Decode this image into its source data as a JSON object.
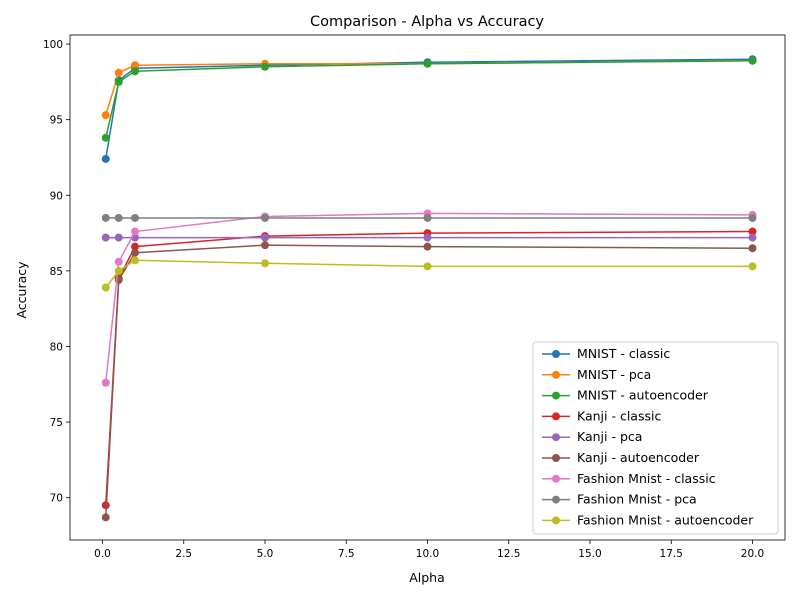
{
  "chart_data": {
    "type": "line",
    "title": "Comparison - Alpha vs Accuracy",
    "xlabel": "Alpha",
    "ylabel": "Accuracy",
    "xlim": [
      -1.0,
      21.0
    ],
    "ylim": [
      67.2,
      100.6
    ],
    "xticks": [
      0.0,
      2.5,
      5.0,
      7.5,
      10.0,
      12.5,
      15.0,
      17.5,
      20.0
    ],
    "xtick_labels": [
      "0.0",
      "2.5",
      "5.0",
      "7.5",
      "10.0",
      "12.5",
      "15.0",
      "17.5",
      "20.0"
    ],
    "yticks": [
      70,
      75,
      80,
      85,
      90,
      95,
      100
    ],
    "ytick_labels": [
      "70",
      "75",
      "80",
      "85",
      "90",
      "95",
      "100"
    ],
    "grid": false,
    "legend_position": "bottom-right",
    "x": [
      0.1,
      0.5,
      1.0,
      5.0,
      10.0,
      20.0
    ],
    "series": [
      {
        "name": "MNIST - classic",
        "color": "#1f77b4",
        "values": [
          92.4,
          97.6,
          98.4,
          98.6,
          98.8,
          99.0
        ]
      },
      {
        "name": "MNIST - pca",
        "color": "#ff7f0e",
        "values": [
          95.3,
          98.1,
          98.6,
          98.7,
          98.7,
          98.9
        ]
      },
      {
        "name": "MNIST - autoencoder",
        "color": "#2ca02c",
        "values": [
          93.8,
          97.5,
          98.2,
          98.5,
          98.7,
          98.9
        ]
      },
      {
        "name": "Kanji - classic",
        "color": "#d62728",
        "values": [
          69.5,
          84.5,
          86.6,
          87.3,
          87.5,
          87.6
        ]
      },
      {
        "name": "Kanji - pca",
        "color": "#9467bd",
        "values": [
          87.2,
          87.2,
          87.2,
          87.2,
          87.2,
          87.2
        ]
      },
      {
        "name": "Kanji - autoencoder",
        "color": "#8c564b",
        "values": [
          68.7,
          84.4,
          86.2,
          86.7,
          86.6,
          86.5
        ]
      },
      {
        "name": "Fashion Mnist - classic",
        "color": "#e377c2",
        "values": [
          77.6,
          85.6,
          87.6,
          88.6,
          88.8,
          88.7
        ]
      },
      {
        "name": "Fashion Mnist - pca",
        "color": "#7f7f7f",
        "values": [
          88.5,
          88.5,
          88.5,
          88.5,
          88.5,
          88.5
        ]
      },
      {
        "name": "Fashion Mnist - autoencoder",
        "color": "#bcbd22",
        "values": [
          83.9,
          85.0,
          85.7,
          85.5,
          85.3,
          85.3
        ]
      }
    ]
  }
}
